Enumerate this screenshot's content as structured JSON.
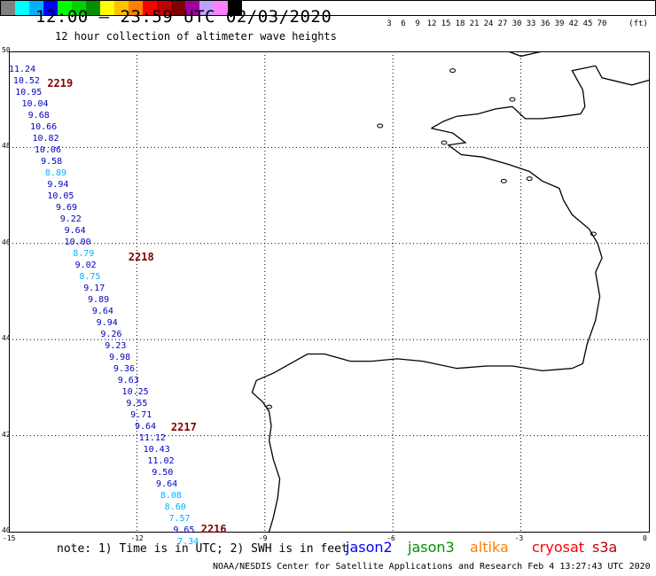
{
  "title": "12:00 – 23:59 UTC 02/03/2020",
  "subtitle": "12 hour collection of altimeter wave heights",
  "color_scale": {
    "unit_label": "(ft)",
    "colors": [
      "#808080",
      "#00ffff",
      "#00b0ff",
      "#0000ff",
      "#00ff00",
      "#00d000",
      "#009000",
      "#ffff00",
      "#ffc000",
      "#ff8000",
      "#ff0000",
      "#c00000",
      "#800000",
      "#a000a0",
      "#c0a0ff",
      "#ff80ff",
      "#000000"
    ],
    "labels": [
      "3",
      "6",
      "9",
      "12",
      "15",
      "18",
      "21",
      "24",
      "27",
      "30",
      "33",
      "36",
      "39",
      "42",
      "45",
      "70"
    ]
  },
  "axes": {
    "lat_labels": [
      "50",
      "48",
      "46",
      "44",
      "42",
      "40"
    ],
    "lon_labels": [
      "-15",
      "-12",
      "-9",
      "-6",
      "-3",
      "0"
    ]
  },
  "passes": [
    {
      "id": "2219",
      "lon": -14.1,
      "lat": 49.33
    },
    {
      "id": "2218",
      "lon": -12.2,
      "lat": 45.72
    },
    {
      "id": "2217",
      "lon": -11.2,
      "lat": 42.18
    },
    {
      "id": "2216",
      "lon": -10.5,
      "lat": 40.05
    }
  ],
  "observations": [
    {
      "lon": -15.0,
      "lat": 49.62,
      "v": "11.24"
    },
    {
      "lon": -14.9,
      "lat": 49.38,
      "v": "10.52"
    },
    {
      "lon": -14.85,
      "lat": 49.14,
      "v": "10.95"
    },
    {
      "lon": -14.7,
      "lat": 48.89,
      "v": "10.04"
    },
    {
      "lon": -14.55,
      "lat": 48.65,
      "v": "9.68"
    },
    {
      "lon": -14.5,
      "lat": 48.41,
      "v": "10.66"
    },
    {
      "lon": -14.45,
      "lat": 48.17,
      "v": "10.82"
    },
    {
      "lon": -14.4,
      "lat": 47.94,
      "v": "10.06"
    },
    {
      "lon": -14.25,
      "lat": 47.7,
      "v": "9.58"
    },
    {
      "lon": -14.15,
      "lat": 47.46,
      "v": "8.89"
    },
    {
      "lon": -14.1,
      "lat": 47.22,
      "v": "9.94"
    },
    {
      "lon": -14.1,
      "lat": 46.98,
      "v": "10.05"
    },
    {
      "lon": -13.9,
      "lat": 46.74,
      "v": "9.69"
    },
    {
      "lon": -13.8,
      "lat": 46.5,
      "v": "9.22"
    },
    {
      "lon": -13.7,
      "lat": 46.26,
      "v": "9.64"
    },
    {
      "lon": -13.7,
      "lat": 46.02,
      "v": "10.00"
    },
    {
      "lon": -13.5,
      "lat": 45.78,
      "v": "8.79"
    },
    {
      "lon": -13.45,
      "lat": 45.54,
      "v": "9.02"
    },
    {
      "lon": -13.35,
      "lat": 45.3,
      "v": "8.75"
    },
    {
      "lon": -13.25,
      "lat": 45.06,
      "v": "9.17"
    },
    {
      "lon": -13.15,
      "lat": 44.82,
      "v": "9.89"
    },
    {
      "lon": -13.05,
      "lat": 44.58,
      "v": "9.64"
    },
    {
      "lon": -12.95,
      "lat": 44.34,
      "v": "9.94"
    },
    {
      "lon": -12.85,
      "lat": 44.1,
      "v": "9.26"
    },
    {
      "lon": -12.75,
      "lat": 43.86,
      "v": "9.23"
    },
    {
      "lon": -12.65,
      "lat": 43.62,
      "v": "9.98"
    },
    {
      "lon": -12.55,
      "lat": 43.38,
      "v": "9.36"
    },
    {
      "lon": -12.45,
      "lat": 43.14,
      "v": "9.63"
    },
    {
      "lon": -12.35,
      "lat": 42.9,
      "v": "10.25"
    },
    {
      "lon": -12.25,
      "lat": 42.66,
      "v": "9.55"
    },
    {
      "lon": -12.15,
      "lat": 42.42,
      "v": "9.71"
    },
    {
      "lon": -12.05,
      "lat": 42.18,
      "v": "9.64"
    },
    {
      "lon": -11.95,
      "lat": 41.94,
      "v": "11.12"
    },
    {
      "lon": -11.85,
      "lat": 41.7,
      "v": "10.43"
    },
    {
      "lon": -11.75,
      "lat": 41.46,
      "v": "11.02"
    },
    {
      "lon": -11.65,
      "lat": 41.22,
      "v": "9.50"
    },
    {
      "lon": -11.55,
      "lat": 40.98,
      "v": "9.64"
    },
    {
      "lon": -11.45,
      "lat": 40.74,
      "v": "8.08"
    },
    {
      "lon": -11.35,
      "lat": 40.5,
      "v": "8.60"
    },
    {
      "lon": -11.25,
      "lat": 40.26,
      "v": "7.57"
    },
    {
      "lon": -11.15,
      "lat": 40.02,
      "v": "9.65"
    },
    {
      "lon": -11.05,
      "lat": 39.78,
      "v": "7.34"
    }
  ],
  "note": "note:  1) Time is in UTC;  2) SWH is in feet",
  "legend": [
    {
      "name": "jason2",
      "color": "#0000ff"
    },
    {
      "name": "jason3",
      "color": "#009000"
    },
    {
      "name": "altika",
      "color": "#ff8000"
    },
    {
      "name": "cryosat",
      "color": "#ff0000"
    },
    {
      "name": "s3a",
      "color": "#c00000"
    }
  ],
  "credit": "NOAA/NESDIS Center for Satellite Applications and Research    Feb  4 13:27:43 UTC 2020"
}
